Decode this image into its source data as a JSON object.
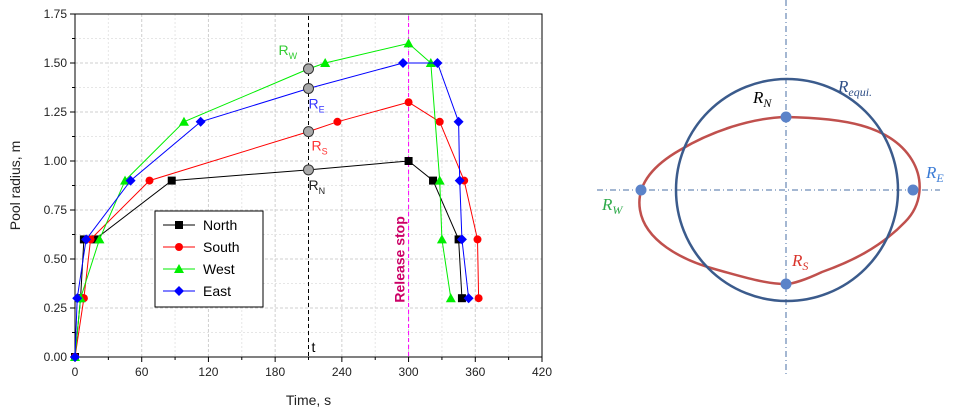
{
  "chart_data": {
    "type": "line",
    "xlabel": "Time, s",
    "ylabel": "Pool radius, m",
    "xlim": [
      0,
      420
    ],
    "ylim": [
      0,
      1.75
    ],
    "xticks": [
      "0",
      "60",
      "120",
      "180",
      "240",
      "300",
      "360",
      "420"
    ],
    "yticks": [
      "0.00",
      "0.25",
      "0.50",
      "0.75",
      "1.00",
      "1.25",
      "1.50",
      "1.75"
    ],
    "grid": true,
    "legend_position": "bottom-left",
    "series": [
      {
        "name": "North",
        "color": "#000000",
        "marker": "square",
        "x": [
          0,
          5,
          8,
          18,
          87,
          210,
          300,
          322,
          345,
          348
        ],
        "y": [
          0,
          0.3,
          0.6,
          0.6,
          0.9,
          0.955,
          1.0,
          0.9,
          0.6,
          0.3
        ]
      },
      {
        "name": "South",
        "color": "#ff0000",
        "marker": "circle",
        "x": [
          0,
          8,
          14,
          67,
          210,
          236,
          300,
          328,
          350,
          362,
          363
        ],
        "y": [
          0,
          0.3,
          0.6,
          0.9,
          1.15,
          1.2,
          1.3,
          1.2,
          0.9,
          0.6,
          0.3
        ]
      },
      {
        "name": "West",
        "color": "#00ee00",
        "marker": "triangle",
        "x": [
          0,
          5,
          22,
          45,
          98,
          210,
          225,
          300,
          320,
          328,
          330,
          338
        ],
        "y": [
          0,
          0.3,
          0.6,
          0.9,
          1.2,
          1.47,
          1.5,
          1.6,
          1.5,
          0.9,
          0.6,
          0.3
        ]
      },
      {
        "name": "East",
        "color": "#0000ff",
        "marker": "diamond",
        "x": [
          0,
          2,
          10,
          50,
          113,
          210,
          295,
          326,
          345,
          346,
          348,
          354
        ],
        "y": [
          0,
          0.3,
          0.6,
          0.9,
          1.2,
          1.37,
          1.5,
          1.5,
          1.2,
          0.9,
          0.6,
          0.3
        ]
      }
    ],
    "t_marker": {
      "x": 210,
      "label": "t",
      "color": "#000000"
    },
    "release_line": {
      "x": 300,
      "label": "Release stop",
      "color": "#ff00ff"
    },
    "point_labels": [
      {
        "series": "West",
        "x": 210,
        "y": 1.47,
        "text": "R",
        "sub": "W",
        "color": "#33cc33"
      },
      {
        "series": "East",
        "x": 210,
        "y": 1.37,
        "text": "R",
        "sub": "E",
        "color": "#3333ff"
      },
      {
        "series": "South",
        "x": 210,
        "y": 1.15,
        "text": "R",
        "sub": "S",
        "color": "#ff3333"
      },
      {
        "series": "North",
        "x": 210,
        "y": 0.955,
        "text": "R",
        "sub": "N",
        "color": "#222222"
      }
    ]
  },
  "diagram": {
    "circle_label": {
      "text": "R",
      "sub": "equi.",
      "color": "#2f4f87"
    },
    "labels": {
      "north": {
        "text": "R",
        "sub": "N",
        "color": "#000000"
      },
      "south": {
        "text": "R",
        "sub": "S",
        "color": "#d9342b"
      },
      "west": {
        "text": "R",
        "sub": "W",
        "color": "#2eaa4a"
      },
      "east": {
        "text": "R",
        "sub": "E",
        "color": "#3a7bd5"
      }
    },
    "colors": {
      "circle": "#3b5b8c",
      "contour": "#c0504d",
      "points": "#5b83c9",
      "axes": "#4a6fa5"
    }
  }
}
